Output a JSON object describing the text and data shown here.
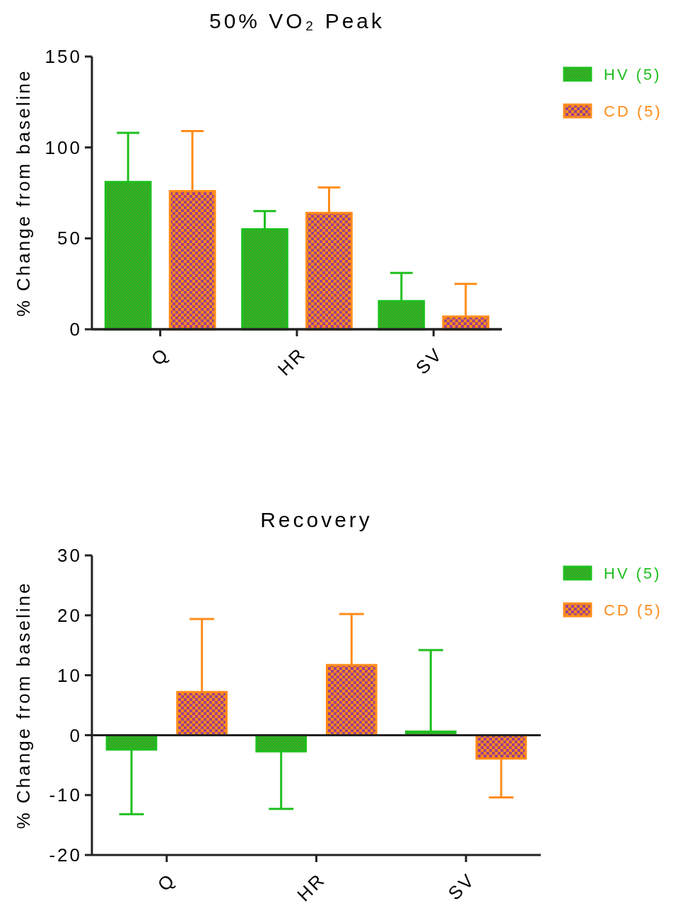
{
  "chart_data": [
    {
      "type": "bar",
      "title": "50%  VO₂ Peak",
      "ylabel": "% Change from baseline",
      "categories": [
        "Q",
        "HR",
        "SV"
      ],
      "series": [
        {
          "name": "HV (5)",
          "color": "#1fbf1f",
          "values": [
            81,
            55,
            15.5
          ],
          "errors": [
            [
              81,
              108
            ],
            [
              55,
              65
            ],
            [
              15.5,
              31
            ]
          ]
        },
        {
          "name": "CD (5)",
          "color": "#ff8c1a",
          "values": [
            76,
            64,
            7
          ],
          "errors": [
            [
              76,
              109
            ],
            [
              64,
              78
            ],
            [
              7,
              25
            ]
          ]
        }
      ],
      "ylim": [
        0,
        150
      ],
      "yticks": [
        0,
        50,
        100,
        150
      ],
      "legend": "right"
    },
    {
      "type": "bar",
      "title": "Recovery",
      "ylabel": "% Change from baseline",
      "categories": [
        "Q",
        "HR",
        "SV"
      ],
      "series": [
        {
          "name": "HV (5)",
          "color": "#1fbf1f",
          "values": [
            -2.4,
            -2.7,
            0.6
          ],
          "errors": [
            [
              -13.2,
              -2.4
            ],
            [
              -12.3,
              -2.7
            ],
            [
              0.6,
              14.2
            ]
          ]
        },
        {
          "name": "CD (5)",
          "color": "#ff8c1a",
          "values": [
            7.2,
            11.7,
            -3.9
          ],
          "errors": [
            [
              7.2,
              19.4
            ],
            [
              11.7,
              20.2
            ],
            [
              -10.4,
              -3.9
            ]
          ]
        }
      ],
      "ylim": [
        -20,
        30
      ],
      "yticks": [
        -20,
        -10,
        0,
        10,
        20,
        30
      ],
      "legend": "right"
    }
  ]
}
